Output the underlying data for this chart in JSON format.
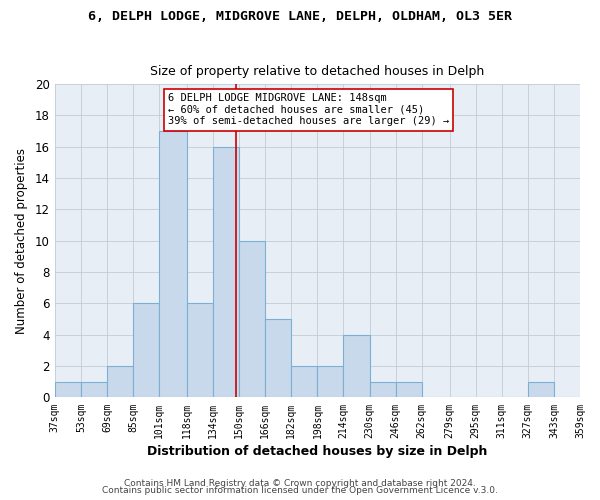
{
  "title": "6, DELPH LODGE, MIDGROVE LANE, DELPH, OLDHAM, OL3 5ER",
  "subtitle": "Size of property relative to detached houses in Delph",
  "xlabel": "Distribution of detached houses by size in Delph",
  "ylabel": "Number of detached properties",
  "bin_edges": [
    37,
    53,
    69,
    85,
    101,
    118,
    134,
    150,
    166,
    182,
    198,
    214,
    230,
    246,
    262,
    279,
    295,
    311,
    327,
    343,
    359
  ],
  "bin_labels": [
    "37sqm",
    "53sqm",
    "69sqm",
    "85sqm",
    "101sqm",
    "118sqm",
    "134sqm",
    "150sqm",
    "166sqm",
    "182sqm",
    "198sqm",
    "214sqm",
    "230sqm",
    "246sqm",
    "262sqm",
    "279sqm",
    "295sqm",
    "311sqm",
    "327sqm",
    "343sqm",
    "359sqm"
  ],
  "counts": [
    1,
    1,
    2,
    6,
    17,
    6,
    16,
    10,
    5,
    2,
    2,
    4,
    1,
    1,
    0,
    0,
    0,
    0,
    1,
    0
  ],
  "bar_color": "#c8d9ec",
  "bar_edge_color": "#7bafd4",
  "property_line_x": 148,
  "property_line_color": "#cc0000",
  "annotation_line1": "6 DELPH LODGE MIDGROVE LANE: 148sqm",
  "annotation_line2": "← 60% of detached houses are smaller (45)",
  "annotation_line3": "39% of semi-detached houses are larger (29) →",
  "annotation_box_color": "#ffffff",
  "annotation_box_edge": "#cc0000",
  "ylim": [
    0,
    20
  ],
  "yticks": [
    0,
    2,
    4,
    6,
    8,
    10,
    12,
    14,
    16,
    18,
    20
  ],
  "footer1": "Contains HM Land Registry data © Crown copyright and database right 2024.",
  "footer2": "Contains public sector information licensed under the Open Government Licence v.3.0.",
  "bg_color": "#ffffff",
  "plot_bg_color": "#e8eef5",
  "grid_color": "#c0ccd8"
}
